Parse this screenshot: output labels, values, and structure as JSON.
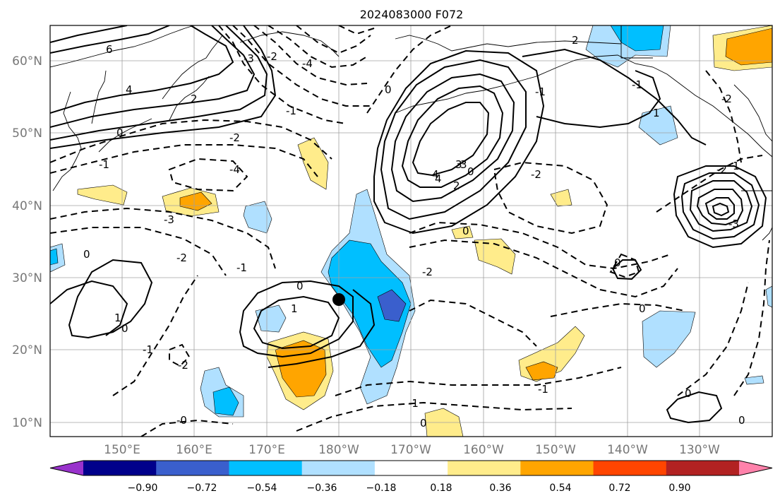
{
  "title": "2024083000 F072",
  "lat_labels": [
    "60°N",
    "50°N",
    "40°N",
    "30°N",
    "20°N",
    "10°N"
  ],
  "lon_labels": [
    "150°E",
    "160°E",
    "170°E",
    "180°W",
    "170°W",
    "160°W",
    "150°W",
    "140°W",
    "130°W"
  ],
  "colorbar": {
    "colors": [
      "#9932cc",
      "#00008b",
      "#3a5fcd",
      "#00bfff",
      "#b0e0ff",
      "#ffffff",
      "#ffec8b",
      "#ffa500",
      "#ff4500",
      "#b22222",
      "#ff82ab"
    ],
    "tick_labels": [
      "−0.90",
      "−0.72",
      "−0.54",
      "−0.36",
      "−0.18",
      "0.18",
      "0.36",
      "0.54",
      "0.72",
      "0.90"
    ]
  },
  "contour_labels": [
    "6",
    "4",
    "2",
    "0",
    "-1",
    "-2",
    "-3",
    "-4",
    "0",
    "-2",
    "-3",
    "-4",
    "0",
    "-1",
    "-2",
    "2",
    "3",
    "4",
    "-1",
    "0",
    "1",
    "0",
    "-2",
    "-1",
    "-2",
    "1",
    "2",
    "3",
    "4",
    "0",
    "-1",
    "-2",
    "0",
    "1",
    "-1",
    "0",
    "0",
    "-1",
    "-2",
    "-1",
    "-0",
    "0",
    "0",
    "-2",
    "0",
    "1",
    "-3"
  ],
  "storm_marker": {
    "lat": 27,
    "lon": -180
  }
}
